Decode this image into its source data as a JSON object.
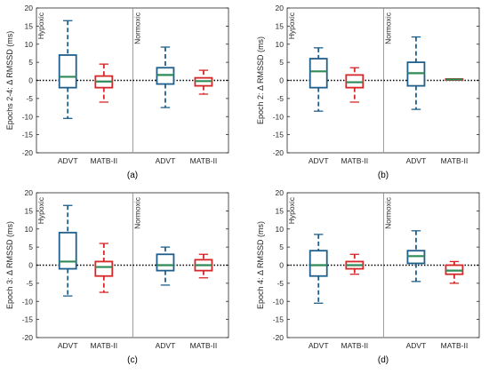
{
  "figure": {
    "x_labels": [
      "ADVT",
      "MATB-II",
      "ADVT",
      "MATB-II"
    ],
    "colors": {
      "advt": "#1f5f8b",
      "matb": "#d62728",
      "median": "#2e8b57",
      "divider": "#999999",
      "zero_line": "#000000"
    }
  },
  "chart_data": [
    {
      "type": "box",
      "panel_label": "(a)",
      "ylabel": "Epochs 2-4: Δ RMSSD (ms)",
      "ylim": [
        -20,
        20
      ],
      "yticks": [
        20,
        15,
        10,
        5,
        0,
        -5,
        -10,
        -15,
        -20
      ],
      "zero_line": true,
      "group_labels": [
        "Hypoxic",
        "Normoxic"
      ],
      "categories": [
        "ADVT",
        "MATB-II",
        "ADVT",
        "MATB-II"
      ],
      "groups": [
        "Hypoxic",
        "Hypoxic",
        "Normoxic",
        "Normoxic"
      ],
      "boxes": [
        {
          "whisker_low": -10.5,
          "q1": -2,
          "median": 1,
          "q3": 7,
          "whisker_high": 16.5
        },
        {
          "whisker_low": -6,
          "q1": -2,
          "median": -0.3,
          "q3": 1.2,
          "whisker_high": 4.5
        },
        {
          "whisker_low": -7.5,
          "q1": -1,
          "median": 1.5,
          "q3": 3.5,
          "whisker_high": 9.2
        },
        {
          "whisker_low": -3.8,
          "q1": -1.5,
          "median": -0.2,
          "q3": 0.7,
          "whisker_high": 2.8
        }
      ]
    },
    {
      "type": "box",
      "panel_label": "(b)",
      "ylabel": "Epoch 2: Δ RMSSD (ms)",
      "ylim": [
        -20,
        20
      ],
      "yticks": [
        20,
        15,
        10,
        5,
        0,
        -5,
        -10,
        -15,
        -20
      ],
      "zero_line": true,
      "group_labels": [
        "Hypoxic",
        "Normoxic"
      ],
      "categories": [
        "ADVT",
        "MATB-II",
        "ADVT",
        "MATB-II"
      ],
      "groups": [
        "Hypoxic",
        "Hypoxic",
        "Normoxic",
        "Normoxic"
      ],
      "boxes": [
        {
          "whisker_low": -8.5,
          "q1": -2,
          "median": 2.5,
          "q3": 6,
          "whisker_high": 9
        },
        {
          "whisker_low": -6,
          "q1": -2,
          "median": -0.5,
          "q3": 1.5,
          "whisker_high": 3.5
        },
        {
          "whisker_low": -8,
          "q1": -1.5,
          "median": 2,
          "q3": 5,
          "whisker_high": 12
        },
        {
          "whisker_low": 0.1,
          "q1": 0.1,
          "median": 0.25,
          "q3": 0.4,
          "whisker_high": 0.4
        }
      ]
    },
    {
      "type": "box",
      "panel_label": "(c)",
      "ylabel": "Epoch 3: Δ RMSSD (ms)",
      "ylim": [
        -20,
        20
      ],
      "yticks": [
        20,
        15,
        10,
        5,
        0,
        -5,
        -10,
        -15,
        -20
      ],
      "zero_line": true,
      "group_labels": [
        "Hypoxic",
        "Normoxic"
      ],
      "categories": [
        "ADVT",
        "MATB-II",
        "ADVT",
        "MATB-II"
      ],
      "groups": [
        "Hypoxic",
        "Hypoxic",
        "Normoxic",
        "Normoxic"
      ],
      "boxes": [
        {
          "whisker_low": -8.5,
          "q1": -1,
          "median": 1,
          "q3": 9,
          "whisker_high": 16.5
        },
        {
          "whisker_low": -7.5,
          "q1": -3,
          "median": -0.5,
          "q3": 1,
          "whisker_high": 6
        },
        {
          "whisker_low": -5.5,
          "q1": -1.5,
          "median": 0,
          "q3": 3,
          "whisker_high": 5
        },
        {
          "whisker_low": -3.5,
          "q1": -1.5,
          "median": 0,
          "q3": 1.5,
          "whisker_high": 3
        }
      ]
    },
    {
      "type": "box",
      "panel_label": "(d)",
      "ylabel": "Epoch 4: Δ RMSSD (ms)",
      "ylim": [
        -20,
        20
      ],
      "yticks": [
        20,
        15,
        10,
        5,
        0,
        -5,
        -10,
        -15,
        -20
      ],
      "zero_line": true,
      "group_labels": [
        "Hypoxic",
        "Normoxic"
      ],
      "categories": [
        "ADVT",
        "MATB-II",
        "ADVT",
        "MATB-II"
      ],
      "groups": [
        "Hypoxic",
        "Hypoxic",
        "Normoxic",
        "Normoxic"
      ],
      "boxes": [
        {
          "whisker_low": -10.5,
          "q1": -3,
          "median": 0,
          "q3": 4,
          "whisker_high": 8.5
        },
        {
          "whisker_low": -2.5,
          "q1": -1,
          "median": 0,
          "q3": 1,
          "whisker_high": 3
        },
        {
          "whisker_low": -4.5,
          "q1": 0.5,
          "median": 2.5,
          "q3": 4,
          "whisker_high": 9.5
        },
        {
          "whisker_low": -5,
          "q1": -2.5,
          "median": -1.5,
          "q3": 0,
          "whisker_high": 1
        }
      ]
    }
  ]
}
